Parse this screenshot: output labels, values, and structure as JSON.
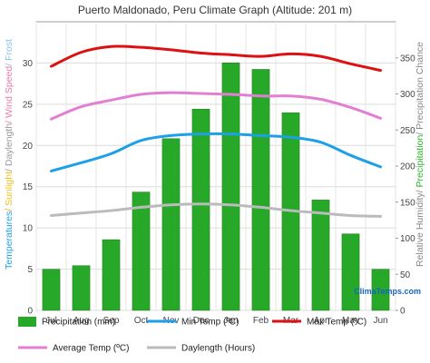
{
  "chart_data": {
    "type": "bar",
    "title": "Puerto Maldonado, Peru Climate Graph (Altitude: 201 m)",
    "categories": [
      "Jul",
      "Aug",
      "Sep",
      "Oct",
      "Nov",
      "Dec",
      "Jan",
      "Feb",
      "Mar",
      "Apr",
      "May",
      "Jun"
    ],
    "left_axis": {
      "ylim": [
        0,
        35
      ],
      "ticks": [
        0,
        5,
        10,
        15,
        20,
        25,
        30
      ],
      "label_parts": [
        {
          "text": "Temperatures",
          "color": "#1ea0e6"
        },
        {
          "text": "/ ",
          "color": "#e6a21e"
        },
        {
          "text": "Sunlight",
          "color": "#f2c019"
        },
        {
          "text": "/ ",
          "color": "#999999"
        },
        {
          "text": "Daylength",
          "color": "#999999"
        },
        {
          "text": "/ ",
          "color": "#e87aa8"
        },
        {
          "text": "Wind Speed",
          "color": "#e87aa8"
        },
        {
          "text": "/ Frost",
          "color": "#88c4e8"
        }
      ]
    },
    "right_axis": {
      "ylim": [
        0,
        400
      ],
      "ticks": [
        0,
        50,
        100,
        150,
        200,
        250,
        300,
        350
      ],
      "label_parts": [
        {
          "text": "Relative Humidity",
          "color": "#888888"
        },
        {
          "text": "/ ",
          "color": "#888888"
        },
        {
          "text": "Precipitation",
          "color": "#2db32d"
        },
        {
          "text": "/ Precipitation Chance",
          "color": "#888888"
        }
      ]
    },
    "series": [
      {
        "name": "Precipitation (mm)",
        "type": "bar",
        "axis": "right",
        "color": "#28a828",
        "values": [
          57,
          62,
          98,
          164,
          238,
          279,
          343,
          334,
          274,
          153,
          106,
          57
        ]
      },
      {
        "name": "Min Temp (ºC)",
        "type": "line",
        "axis": "left",
        "color": "#1ea0e6",
        "values": [
          16.9,
          17.9,
          19.0,
          20.6,
          21.2,
          21.4,
          21.4,
          21.2,
          21.0,
          20.4,
          18.8,
          17.4
        ]
      },
      {
        "name": "Max Temp (ºC)",
        "type": "line",
        "axis": "left",
        "color": "#dd1111",
        "values": [
          29.6,
          31.3,
          32.0,
          31.9,
          31.6,
          31.2,
          31.0,
          30.8,
          31.1,
          30.8,
          29.9,
          29.1
        ]
      },
      {
        "name": "Average Temp (ºC)",
        "type": "line",
        "axis": "left",
        "color": "#e37fd3",
        "values": [
          23.2,
          24.7,
          25.5,
          26.2,
          26.4,
          26.3,
          26.2,
          26.0,
          26.0,
          25.6,
          24.6,
          23.3
        ]
      },
      {
        "name": "Daylength (Hours)",
        "type": "line",
        "axis": "left",
        "color": "#bbbbbb",
        "values": [
          11.5,
          11.8,
          12.1,
          12.5,
          12.8,
          12.9,
          12.8,
          12.5,
          12.1,
          11.8,
          11.5,
          11.4
        ]
      }
    ],
    "grid": true,
    "legend_position": "bottom",
    "brand": "ClimaTemps.com"
  }
}
